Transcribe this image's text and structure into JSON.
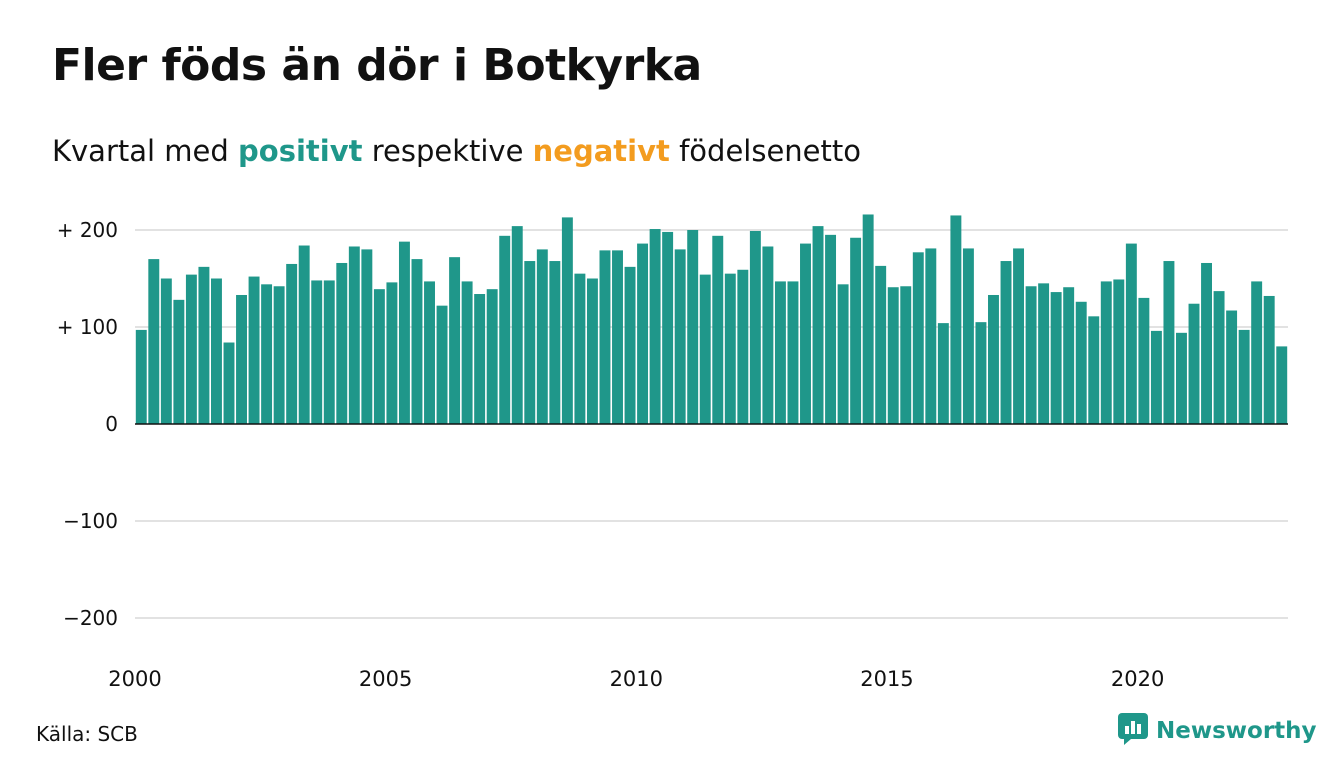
{
  "title": "Fler föds än dör i Botkyrka",
  "subtitle": {
    "prefix": "Kvartal med",
    "positive": "positivt",
    "middle": "respektive",
    "negative": "negativt",
    "suffix": "födelsenetto"
  },
  "source": "Källa: SCB",
  "brand": {
    "name": "Newsworthy",
    "icon": "newsworthy-logo-icon"
  },
  "colors": {
    "positive": "#1f978a",
    "negative": "#f39c1f",
    "grid": "#e2e2e2",
    "axis": "#111111"
  },
  "chart_data": {
    "type": "bar",
    "title": "",
    "xlabel": "",
    "ylabel": "",
    "ylim": [
      -220,
      220
    ],
    "y_ticks": [
      {
        "value": 200,
        "label": "+ 200"
      },
      {
        "value": 100,
        "label": "+ 100"
      },
      {
        "value": 0,
        "label": "0"
      },
      {
        "value": -100,
        "label": "−100"
      },
      {
        "value": -200,
        "label": "−200"
      }
    ],
    "x_ticks": [
      {
        "year": 2000,
        "label": "2000"
      },
      {
        "year": 2005,
        "label": "2005"
      },
      {
        "year": 2010,
        "label": "2010"
      },
      {
        "year": 2015,
        "label": "2015"
      },
      {
        "year": 2020,
        "label": "2020"
      }
    ],
    "start_year": 2000,
    "start_quarter": 1,
    "grid": true,
    "values": [
      97,
      170,
      150,
      128,
      154,
      162,
      150,
      84,
      133,
      152,
      144,
      142,
      165,
      184,
      148,
      148,
      166,
      183,
      180,
      139,
      146,
      188,
      170,
      147,
      122,
      172,
      147,
      134,
      139,
      194,
      204,
      168,
      180,
      168,
      213,
      155,
      150,
      179,
      179,
      162,
      186,
      201,
      198,
      180,
      200,
      154,
      194,
      155,
      159,
      199,
      183,
      147,
      147,
      186,
      204,
      195,
      144,
      192,
      216,
      163,
      141,
      142,
      177,
      181,
      104,
      215,
      181,
      105,
      133,
      168,
      181,
      142,
      145,
      136,
      141,
      126,
      111,
      147,
      149,
      186,
      130,
      96,
      168,
      94,
      124,
      166,
      137,
      117,
      97,
      147,
      132,
      80
    ]
  }
}
